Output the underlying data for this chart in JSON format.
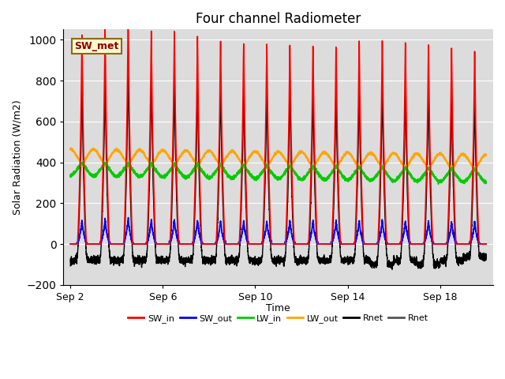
{
  "title": "Four channel Radiometer",
  "xlabel": "Time",
  "ylabel": "Solar Radiation (W/m2)",
  "ylim": [
    -200,
    1050
  ],
  "yticks": [
    -200,
    0,
    200,
    400,
    600,
    800,
    1000
  ],
  "start_day": 2,
  "end_day": 20,
  "num_days": 18,
  "annotation_text": "SW_met",
  "bg_color": "#dcdcdc",
  "fig_color": "#ffffff",
  "SW_in_color": "#ff0000",
  "SW_out_color": "#0000ff",
  "LW_in_color": "#00cc00",
  "LW_out_color": "#ffa500",
  "Rnet_color": "#000000",
  "Rnet2_color": "#555555",
  "legend_labels": [
    "SW_in",
    "SW_out",
    "LW_in",
    "LW_out",
    "Rnet",
    "Rnet"
  ],
  "legend_colors": [
    "#ff0000",
    "#0000ff",
    "#00cc00",
    "#ffa500",
    "#000000",
    "#555555"
  ],
  "xtick_labels": [
    "Sep 2",
    "Sep 6",
    "Sep 10",
    "Sep 14",
    "Sep 18"
  ],
  "xtick_positions": [
    2,
    6,
    10,
    14,
    18
  ]
}
